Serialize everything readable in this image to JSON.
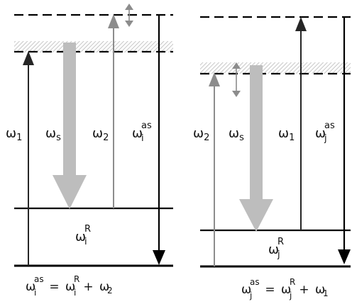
{
  "left": {
    "labels": {
      "w1": {
        "base": "ω",
        "sub": "1"
      },
      "ws": {
        "base": "ω",
        "sub": "s"
      },
      "w2": {
        "base": "ω",
        "sub": "2"
      },
      "wias": {
        "base": "ω",
        "sub": "i",
        "sup": "as"
      },
      "wiR": {
        "base": "ω",
        "sub": "i",
        "sup": "R"
      }
    },
    "equation": {
      "lhs": {
        "base": "ω",
        "sup": "as",
        "sub": "i"
      },
      "eq": " = ",
      "r1": {
        "base": "ω",
        "sup": "R",
        "sub": "i"
      },
      "plus": " + ",
      "r2": {
        "base": "ω",
        "sub": "2"
      }
    }
  },
  "right": {
    "labels": {
      "w2": {
        "base": "ω",
        "sub": "2"
      },
      "ws": {
        "base": "ω",
        "sub": "s"
      },
      "w1": {
        "base": "ω",
        "sub": "1"
      },
      "wjas": {
        "base": "ω",
        "sub": "j",
        "sup": "as"
      },
      "wjR": {
        "base": "ω",
        "sub": "j",
        "sup": "R"
      }
    },
    "equation": {
      "lhs": {
        "base": "ω",
        "sup": "as",
        "sub": "j"
      },
      "eq": " = ",
      "r1": {
        "base": "ω",
        "sup": "R",
        "sub": "j"
      },
      "plus": " + ",
      "r2": {
        "base": "ω",
        "sub": "1"
      }
    }
  },
  "colors": {
    "line": "#000000",
    "arrow_dark": "#262626",
    "arrow_gray": "#8c8c8c",
    "arrow_light": "#bdbdbd",
    "hatch": "#b9b9b9"
  }
}
